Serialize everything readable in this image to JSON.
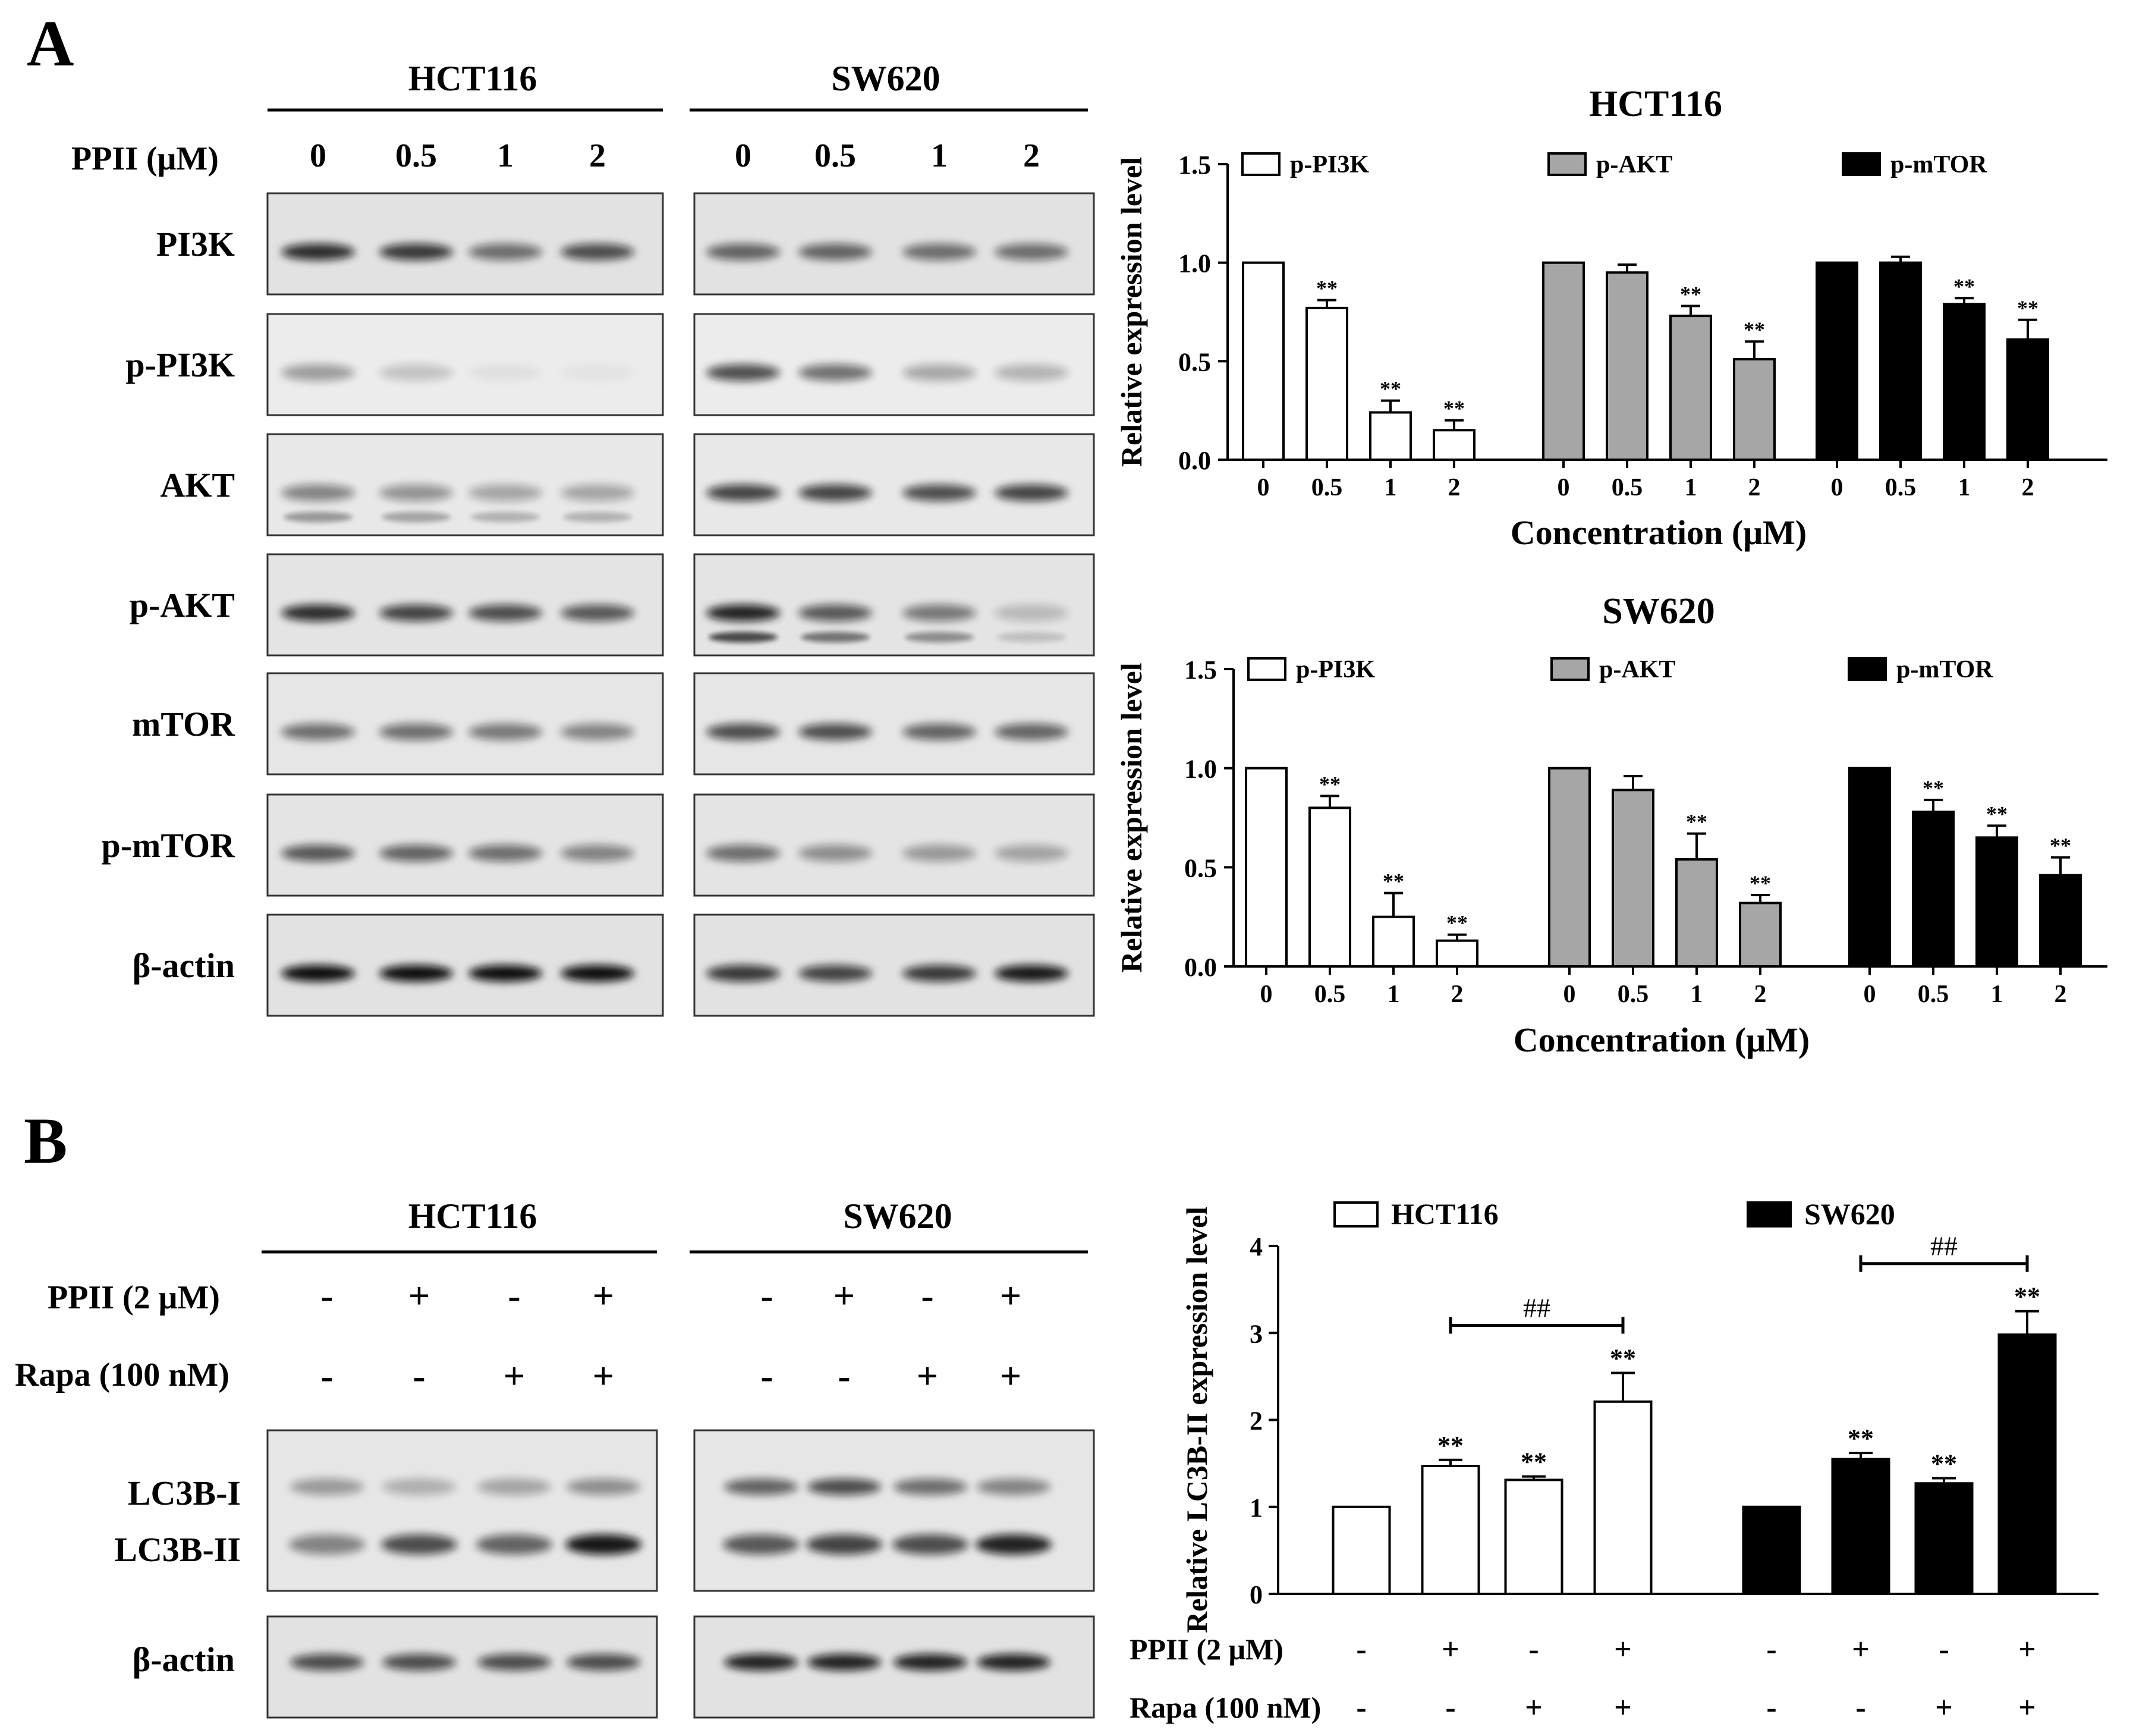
{
  "panel_letters": [
    "A",
    "B"
  ],
  "panelA": {
    "blot": {
      "cell_lines": [
        "HCT116",
        "SW620"
      ],
      "treatment_label": "PPII (μM)",
      "concentrations": [
        "0",
        "0.5",
        "1",
        "2"
      ],
      "proteins": [
        "PI3K",
        "p-PI3K",
        "AKT",
        "p-AKT",
        "mTOR",
        "p-mTOR",
        "β-actin"
      ]
    }
  },
  "panelB": {
    "blot": {
      "cell_lines": [
        "HCT116",
        "SW620"
      ],
      "row_labels": [
        "PPII (2 μM)",
        "Rapa (100 nM)"
      ],
      "ppii_signs": [
        "-",
        "+",
        "-",
        "+"
      ],
      "rapa_signs": [
        "-",
        "-",
        "+",
        "+"
      ],
      "protein_labels": [
        "LC3B-I",
        "LC3B-II",
        "β-actin"
      ]
    }
  },
  "chart_data": [
    {
      "type": "bar",
      "title": "HCT116",
      "xlabel": "Concentration (μM)",
      "ylabel": "Relative expression level",
      "ylim": [
        0,
        1.5
      ],
      "yticks": [
        "0.0",
        "0.5",
        "1.0",
        "1.5"
      ],
      "categories": [
        "0",
        "0.5",
        "1",
        "2"
      ],
      "legend_position": "top",
      "grid": false,
      "series": [
        {
          "name": "p-PI3K",
          "color": "#ffffff",
          "values": [
            1.0,
            0.77,
            0.24,
            0.15
          ],
          "errors": [
            0,
            0.04,
            0.06,
            0.05
          ],
          "sig": [
            "",
            "**",
            "**",
            "**"
          ]
        },
        {
          "name": "p-AKT",
          "color": "#a6a6a6",
          "values": [
            1.0,
            0.95,
            0.73,
            0.51
          ],
          "errors": [
            0,
            0.04,
            0.05,
            0.09
          ],
          "sig": [
            "",
            "",
            "**",
            "**"
          ]
        },
        {
          "name": "p-mTOR",
          "color": "#000000",
          "values": [
            1.0,
            1.0,
            0.79,
            0.61
          ],
          "errors": [
            0,
            0.03,
            0.03,
            0.1
          ],
          "sig": [
            "",
            "",
            "**",
            "**"
          ]
        }
      ]
    },
    {
      "type": "bar",
      "title": "SW620",
      "xlabel": "Concentration (μM)",
      "ylabel": "Relative expression level",
      "ylim": [
        0,
        1.5
      ],
      "yticks": [
        "0.0",
        "0.5",
        "1.0",
        "1.5"
      ],
      "categories": [
        "0",
        "0.5",
        "1",
        "2"
      ],
      "legend_position": "top",
      "grid": false,
      "series": [
        {
          "name": "p-PI3K",
          "color": "#ffffff",
          "values": [
            1.0,
            0.8,
            0.25,
            0.13
          ],
          "errors": [
            0,
            0.06,
            0.12,
            0.03
          ],
          "sig": [
            "",
            "**",
            "**",
            "**"
          ]
        },
        {
          "name": "p-AKT",
          "color": "#a6a6a6",
          "values": [
            1.0,
            0.89,
            0.54,
            0.32
          ],
          "errors": [
            0,
            0.07,
            0.13,
            0.04
          ],
          "sig": [
            "",
            "",
            "**",
            "**"
          ]
        },
        {
          "name": "p-mTOR",
          "color": "#000000",
          "values": [
            1.0,
            0.78,
            0.65,
            0.46
          ],
          "errors": [
            0,
            0.06,
            0.06,
            0.09
          ],
          "sig": [
            "",
            "**",
            "**",
            "**"
          ]
        }
      ]
    },
    {
      "type": "bar",
      "ylabel": "Relative LC3B-II expression level",
      "ylim": [
        0,
        4
      ],
      "yticks": [
        "0",
        "1",
        "2",
        "3",
        "4"
      ],
      "legend_position": "top",
      "grid": false,
      "conditions": {
        "labels": [
          "PPII (2 μM)",
          "Rapa (100 nM)"
        ],
        "ppii": [
          "-",
          "+",
          "-",
          "+"
        ],
        "rapa": [
          "-",
          "-",
          "+",
          "+"
        ]
      },
      "series": [
        {
          "name": "HCT116",
          "color": "#ffffff",
          "values": [
            1.0,
            1.47,
            1.31,
            2.21
          ],
          "errors": [
            0,
            0.07,
            0.04,
            0.33
          ],
          "sig": [
            "",
            "**",
            "**",
            "**"
          ],
          "bracket": {
            "from": 1,
            "to": 3,
            "label": "##"
          }
        },
        {
          "name": "SW620",
          "color": "#000000",
          "values": [
            1.0,
            1.55,
            1.27,
            2.98
          ],
          "errors": [
            0,
            0.07,
            0.06,
            0.27
          ],
          "sig": [
            "",
            "**",
            "**",
            "**"
          ],
          "bracket": {
            "from": 1,
            "to": 3,
            "label": "##"
          }
        }
      ]
    }
  ]
}
